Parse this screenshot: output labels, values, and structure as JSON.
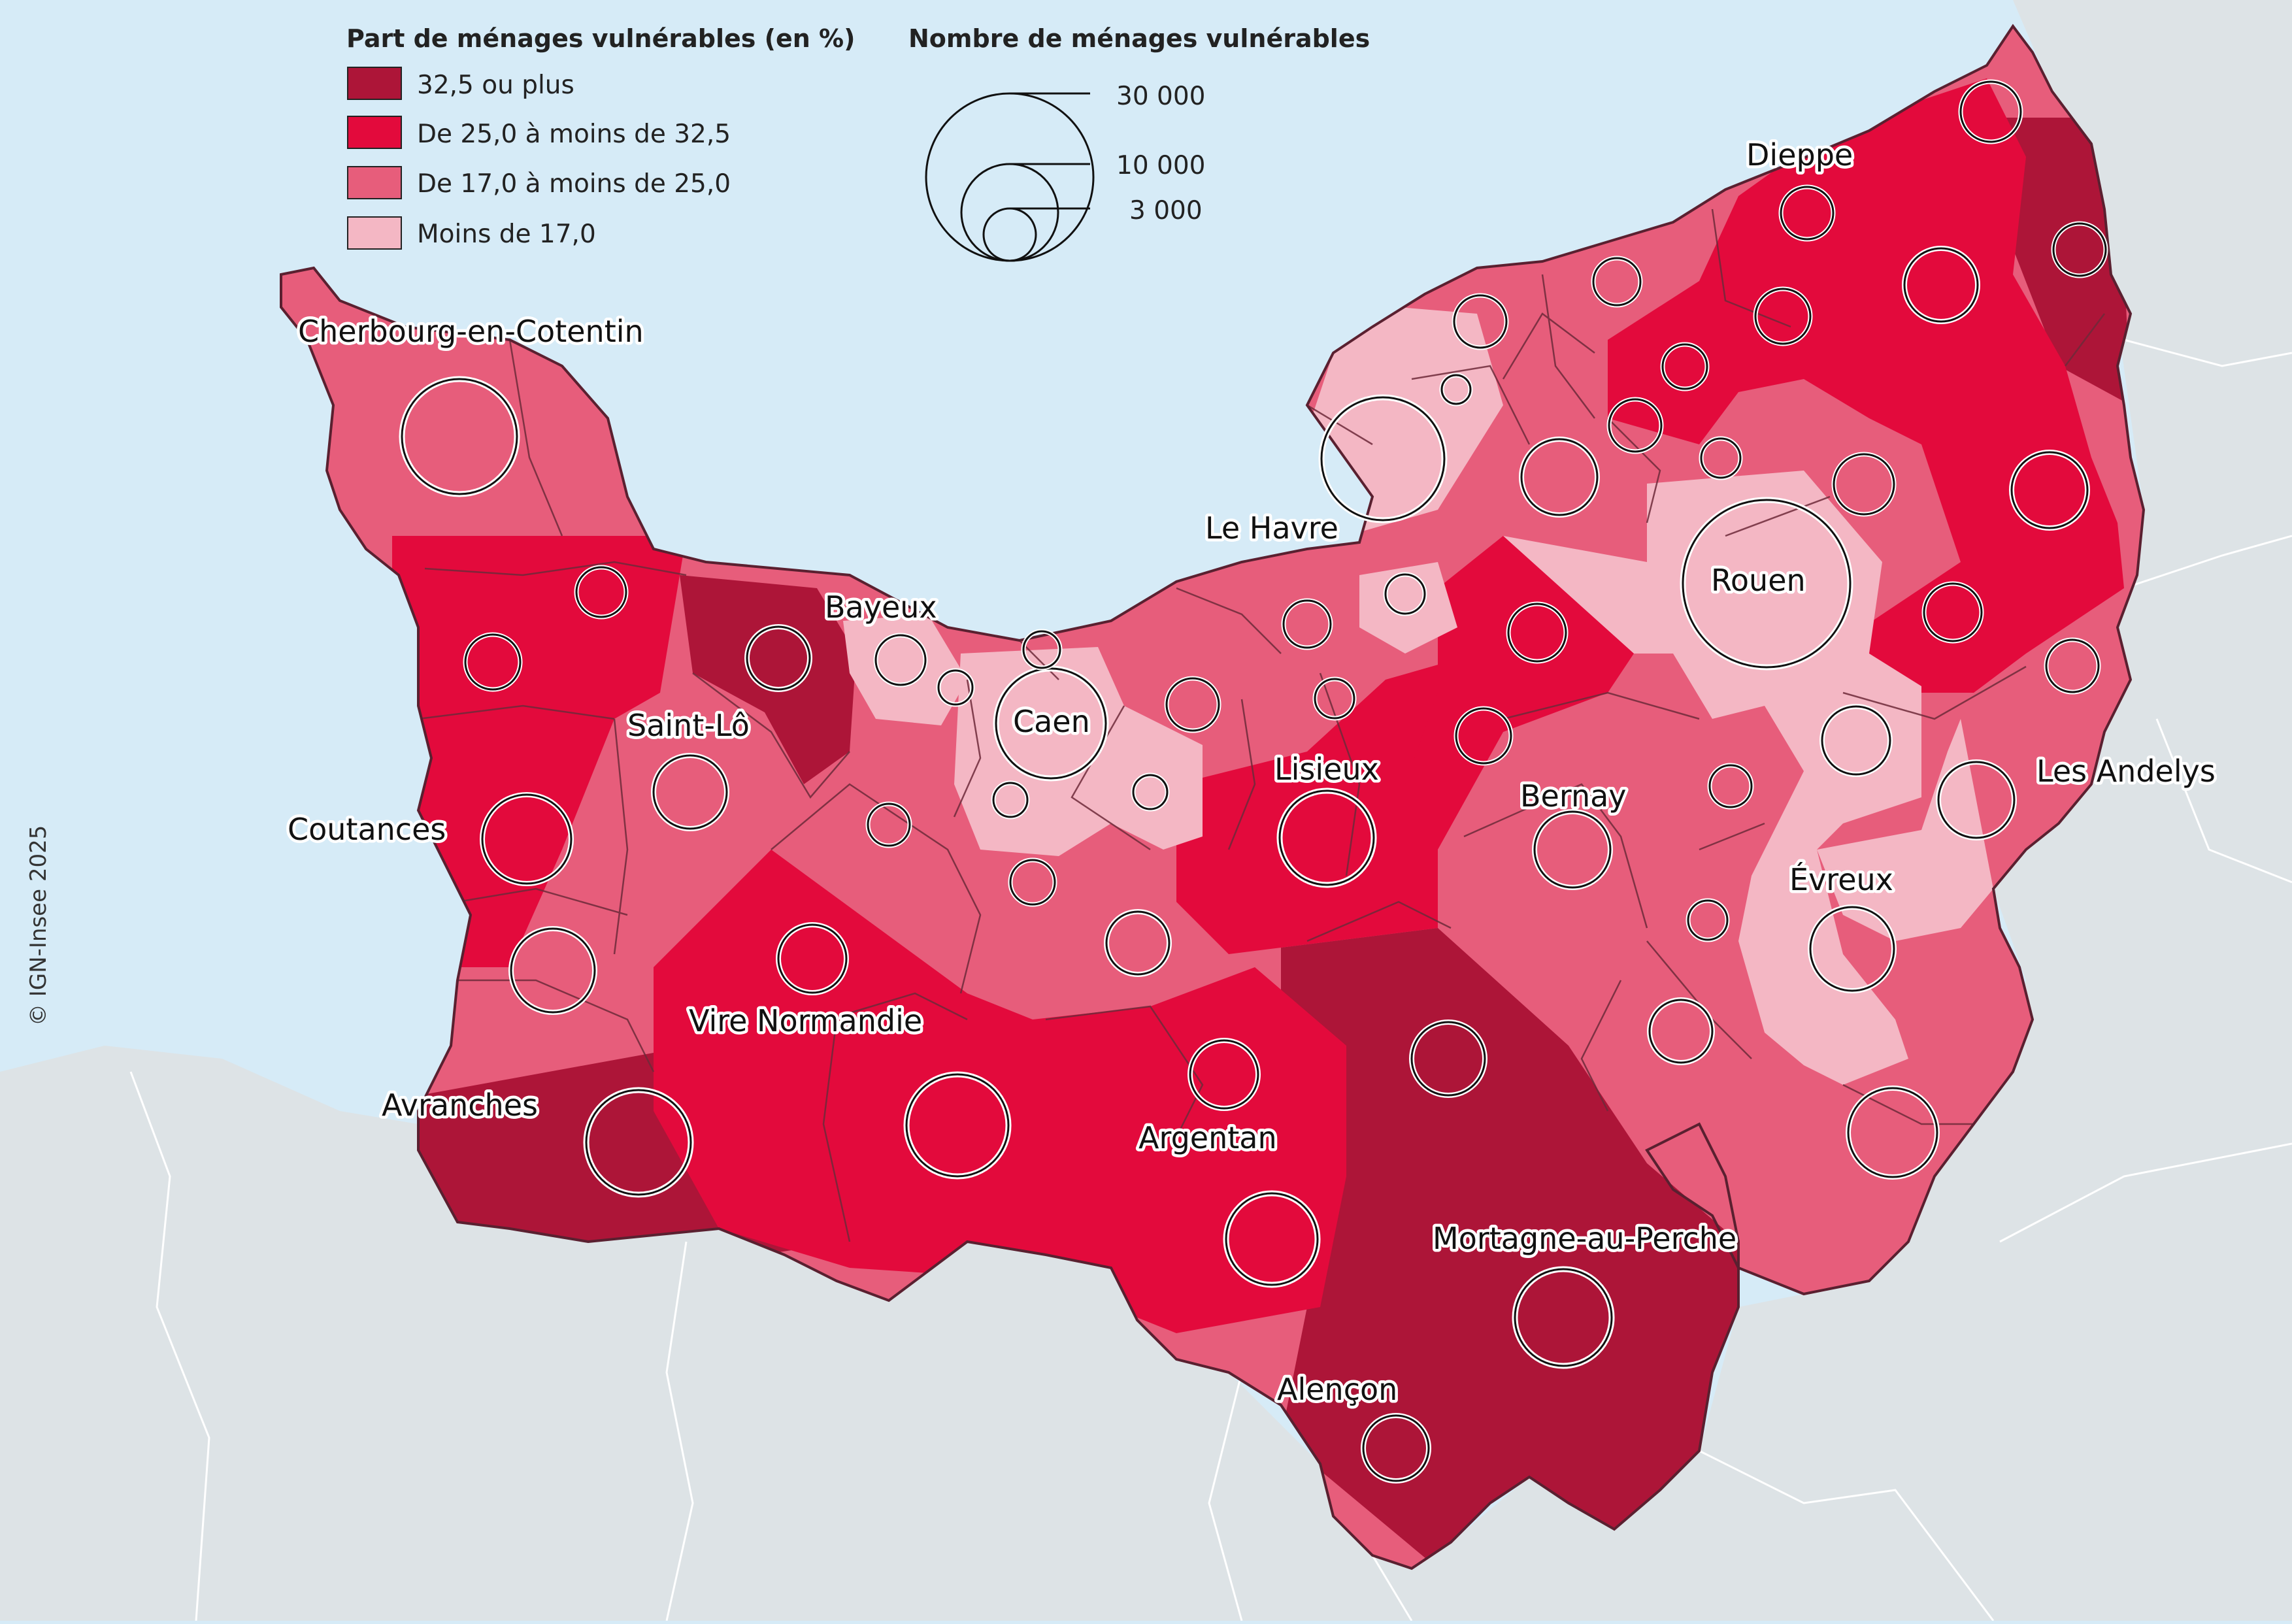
{
  "colors": {
    "sea": "#d6ebf7",
    "land_outside": "#dde3e6",
    "class_1": "#ad1538",
    "class_2": "#e30a3c",
    "class_3": "#e75d7b",
    "class_4": "#f4b7c4"
  },
  "legend": {
    "share_title": "Part de ménages vulnérables (en %)",
    "classes": [
      {
        "label": "32,5 ou plus",
        "color": "#ad1538"
      },
      {
        "label": "De 25,0 à moins de 32,5",
        "color": "#e30a3c"
      },
      {
        "label": "De 17,0 à moins de 25,0",
        "color": "#e75d7b"
      },
      {
        "label": "Moins de 17,0",
        "color": "#f4b7c4"
      }
    ],
    "count_title": "Nombre de ménages vulnérables",
    "sizes": [
      {
        "label": "30  000",
        "value": 30000
      },
      {
        "label": "10  000",
        "value": 10000
      },
      {
        "label": "3  000",
        "value": 3000
      }
    ]
  },
  "cities": {
    "cherbourg": "Cherbourg-en-Cotentin",
    "bayeux": "Bayeux",
    "saint_lo": "Saint-Lô",
    "caen": "Caen",
    "coutances": "Coutances",
    "vire": "Vire Normandie",
    "avranches": "Avranches",
    "argentan": "Argentan",
    "alencon": "Alençon",
    "mortagne": "Mortagne-au-Perche",
    "lisieux": "Lisieux",
    "bernay": "Bernay",
    "le_havre": "Le Havre",
    "rouen": "Rouen",
    "dieppe": "Dieppe",
    "evreux": "Évreux",
    "les_andelys": "Les Andelys"
  },
  "credit": "© IGN-Insee 2025"
}
